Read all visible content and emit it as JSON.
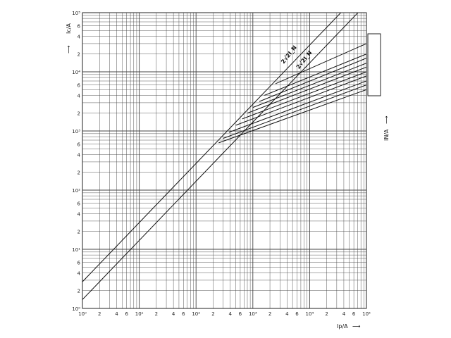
{
  "chart_data": {
    "type": "line",
    "title": "",
    "xlabel": "Ip/A",
    "ylabel_left": "Ic/A",
    "ylabel_right": "IN/A",
    "scale": "log-log",
    "xlim": [
      1,
      100000
    ],
    "ylim": [
      1,
      100000
    ],
    "grid": true,
    "x_tick_labels": [
      "10⁰",
      "2",
      "4",
      "6",
      "10¹",
      "2",
      "4",
      "6",
      "10²",
      "2",
      "4",
      "6",
      "10³",
      "2",
      "4",
      "6",
      "10⁴",
      "2",
      "4",
      "6",
      "10⁵"
    ],
    "y_tick_labels": [
      "10⁰",
      "2",
      "4",
      "6",
      "10¹",
      "2",
      "4",
      "6",
      "10²",
      "2",
      "4",
      "6",
      "10³",
      "2",
      "4",
      "6",
      "10⁴",
      "2",
      "4",
      "6",
      "10⁵"
    ],
    "annotations": [
      "2√2I_N",
      "2√2I_N"
    ],
    "legend_labels": [
      "",
      "",
      "",
      "",
      "",
      "",
      "",
      "",
      "",
      ""
    ],
    "legend_placement": "right",
    "series": [
      {
        "name": "",
        "x": [
          1,
          100000
        ],
        "y": [
          2.828,
          282843
        ]
      },
      {
        "name": "",
        "x": [
          1,
          100000
        ],
        "y": [
          1.414,
          141421
        ]
      },
      {
        "name": "",
        "x": [
          250,
          100000
        ],
        "y": [
          630,
          5000
        ]
      },
      {
        "name": "",
        "x": [
          300,
          100000
        ],
        "y": [
          750,
          6000
        ]
      },
      {
        "name": "",
        "x": [
          380,
          100000
        ],
        "y": [
          950,
          7000
        ]
      },
      {
        "name": "",
        "x": [
          500,
          100000
        ],
        "y": [
          1250,
          8500
        ]
      },
      {
        "name": "",
        "x": [
          650,
          100000
        ],
        "y": [
          1600,
          10000
        ]
      },
      {
        "name": "",
        "x": [
          800,
          100000
        ],
        "y": [
          2000,
          12000
        ]
      },
      {
        "name": "",
        "x": [
          1000,
          100000
        ],
        "y": [
          2500,
          14000
        ]
      },
      {
        "name": "",
        "x": [
          1300,
          100000
        ],
        "y": [
          3150,
          17000
        ]
      },
      {
        "name": "",
        "x": [
          1600,
          100000
        ],
        "y": [
          4000,
          20000
        ]
      },
      {
        "name": "",
        "x": [
          2500,
          100000
        ],
        "y": [
          6300,
          30000
        ]
      }
    ]
  }
}
